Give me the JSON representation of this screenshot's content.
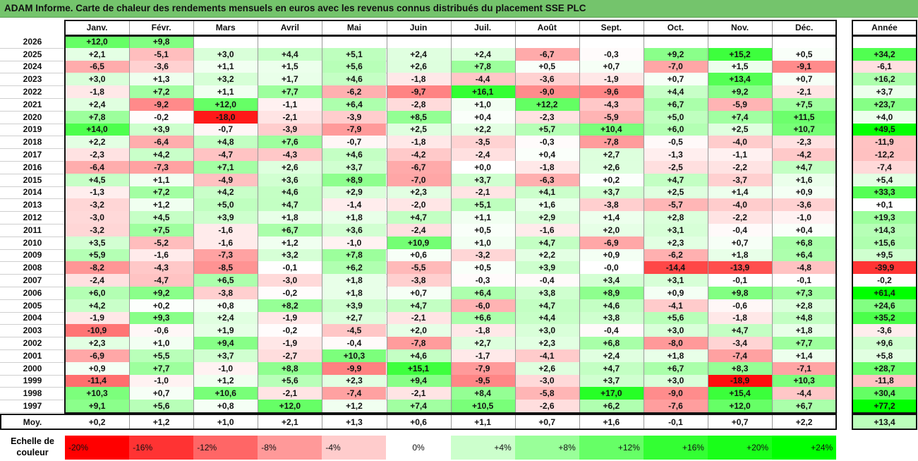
{
  "title": "ADAM Informe. Carte de chaleur des rendements mensuels en euros avec les revenus connus distribués du placement SSE PLC",
  "chart_data": {
    "type": "heatmap",
    "months": [
      "Janv.",
      "Févr.",
      "Mars",
      "Avril",
      "Mai",
      "Juin",
      "Juil.",
      "Août",
      "Sept.",
      "Oct.",
      "Nov.",
      "Déc."
    ],
    "year_header": "Année",
    "rows": [
      {
        "year": "2026",
        "values": [
          "+12,0",
          "+9,8",
          "",
          "",
          "",
          "",
          "",
          "",
          "",
          "",
          "",
          ""
        ],
        "annual": ""
      },
      {
        "year": "2025",
        "values": [
          "+2,1",
          "-5,1",
          "+3,0",
          "+4,4",
          "+5,1",
          "+2,4",
          "+2,4",
          "-6,7",
          "-0,3",
          "+9,2",
          "+15,2",
          "+0,5"
        ],
        "annual": "+34,2"
      },
      {
        "year": "2024",
        "values": [
          "-6,5",
          "-3,6",
          "+1,1",
          "+1,5",
          "+5,6",
          "+2,6",
          "+7,8",
          "+0,5",
          "+0,7",
          "-7,0",
          "+1,5",
          "-9,1"
        ],
        "annual": "-6,1"
      },
      {
        "year": "2023",
        "values": [
          "+3,0",
          "+1,3",
          "+3,2",
          "+1,7",
          "+4,6",
          "-1,8",
          "-4,4",
          "-3,6",
          "-1,9",
          "+0,7",
          "+13,4",
          "+0,7"
        ],
        "annual": "+16,2"
      },
      {
        "year": "2022",
        "values": [
          "-1,8",
          "+7,2",
          "+1,1",
          "+7,7",
          "-6,2",
          "-9,7",
          "+16,1",
          "-9,0",
          "-9,6",
          "+4,4",
          "+9,2",
          "-2,1"
        ],
        "annual": "+3,7"
      },
      {
        "year": "2021",
        "values": [
          "+2,4",
          "-9,2",
          "+12,0",
          "-1,1",
          "+6,4",
          "-2,8",
          "+1,0",
          "+12,2",
          "-4,3",
          "+6,7",
          "-5,9",
          "+7,5"
        ],
        "annual": "+23,7"
      },
      {
        "year": "2020",
        "values": [
          "+7,8",
          "-0,2",
          "-18,0",
          "-2,1",
          "-3,9",
          "+8,5",
          "+0,4",
          "-2,3",
          "-5,9",
          "+5,0",
          "+7,4",
          "+11,5"
        ],
        "annual": "+4,0"
      },
      {
        "year": "2019",
        "values": [
          "+14,0",
          "+3,9",
          "-0,7",
          "-3,9",
          "-7,9",
          "+2,5",
          "+2,2",
          "+5,7",
          "+10,4",
          "+6,0",
          "+2,5",
          "+10,7"
        ],
        "annual": "+49,5"
      },
      {
        "year": "2018",
        "values": [
          "+2,2",
          "-6,4",
          "+4,8",
          "+7,6",
          "-0,7",
          "-1,8",
          "-3,5",
          "-0,3",
          "-7,8",
          "-0,5",
          "-4,0",
          "-2,3"
        ],
        "annual": "-11,9"
      },
      {
        "year": "2017",
        "values": [
          "-2,3",
          "+4,2",
          "-4,7",
          "-4,3",
          "+4,6",
          "-4,2",
          "-2,4",
          "+0,4",
          "+2,7",
          "-1,3",
          "-1,1",
          "-4,2"
        ],
        "annual": "-12,2"
      },
      {
        "year": "2016",
        "values": [
          "-6,4",
          "-7,3",
          "+7,1",
          "+2,6",
          "+3,7",
          "-6,7",
          "+0,0",
          "-1,8",
          "+2,6",
          "-2,5",
          "-2,2",
          "+4,7"
        ],
        "annual": "-7,4"
      },
      {
        "year": "2015",
        "values": [
          "+4,5",
          "+1,1",
          "-4,9",
          "+3,6",
          "+8,9",
          "-7,0",
          "+3,7",
          "-6,3",
          "+0,2",
          "+4,7",
          "-3,7",
          "+1,6"
        ],
        "annual": "+5,4"
      },
      {
        "year": "2014",
        "values": [
          "-1,3",
          "+7,2",
          "+4,2",
          "+4,6",
          "+2,9",
          "+2,3",
          "-2,1",
          "+4,1",
          "+3,7",
          "+2,5",
          "+1,4",
          "+0,9"
        ],
        "annual": "+33,3"
      },
      {
        "year": "2013",
        "values": [
          "-3,2",
          "+1,2",
          "+5,0",
          "+4,7",
          "-1,4",
          "-2,0",
          "+5,1",
          "+1,6",
          "-3,8",
          "-5,7",
          "-4,0",
          "-3,6"
        ],
        "annual": "+0,1"
      },
      {
        "year": "2012",
        "values": [
          "-3,0",
          "+4,5",
          "+3,9",
          "+1,8",
          "+1,8",
          "+4,7",
          "+1,1",
          "+2,9",
          "+1,4",
          "+2,8",
          "-2,2",
          "-1,0"
        ],
        "annual": "+19,3"
      },
      {
        "year": "2011",
        "values": [
          "-3,2",
          "+7,5",
          "-1,6",
          "+6,7",
          "+3,6",
          "-2,4",
          "+0,5",
          "-1,6",
          "+2,0",
          "+3,1",
          "-0,4",
          "+0,4"
        ],
        "annual": "+14,3"
      },
      {
        "year": "2010",
        "values": [
          "+3,5",
          "-5,2",
          "-1,6",
          "+1,2",
          "-1,0",
          "+10,9",
          "+1,0",
          "+4,7",
          "-6,9",
          "+2,3",
          "+0,7",
          "+6,8"
        ],
        "annual": "+15,6"
      },
      {
        "year": "2009",
        "values": [
          "+5,9",
          "-1,6",
          "-7,3",
          "+3,2",
          "+7,8",
          "+0,6",
          "-3,2",
          "+2,2",
          "+0,9",
          "-6,2",
          "+1,8",
          "+6,4"
        ],
        "annual": "+9,5"
      },
      {
        "year": "2008",
        "values": [
          "-8,2",
          "-4,3",
          "-8,5",
          "-0,1",
          "+6,2",
          "-5,5",
          "+0,5",
          "+3,9",
          "-0,0",
          "-14,4",
          "-13,9",
          "-4,8"
        ],
        "annual": "-39,9"
      },
      {
        "year": "2007",
        "values": [
          "-2,4",
          "-4,7",
          "+6,5",
          "-3,0",
          "+1,8",
          "-3,8",
          "-0,3",
          "-0,4",
          "+3,4",
          "+3,1",
          "-0,1",
          "-0,1"
        ],
        "annual": "-0,2"
      },
      {
        "year": "2006",
        "values": [
          "+6,0",
          "+9,2",
          "-3,8",
          "-0,2",
          "+1,8",
          "+0,7",
          "+6,4",
          "+3,8",
          "+8,9",
          "+0,9",
          "+9,8",
          "+7,3"
        ],
        "annual": "+61,4"
      },
      {
        "year": "2005",
        "values": [
          "+4,2",
          "+0,2",
          "+0,8",
          "+8,2",
          "+3,9",
          "+4,7",
          "-6,0",
          "+4,7",
          "+4,6",
          "-4,1",
          "-0,6",
          "+2,8"
        ],
        "annual": "+24,6"
      },
      {
        "year": "2004",
        "values": [
          "-1,9",
          "+9,3",
          "+2,4",
          "-1,9",
          "+2,7",
          "-2,1",
          "+6,6",
          "+4,4",
          "+3,8",
          "+5,6",
          "-1,8",
          "+4,8"
        ],
        "annual": "+35,2"
      },
      {
        "year": "2003",
        "values": [
          "-10,9",
          "-0,6",
          "+1,9",
          "-0,2",
          "-4,5",
          "+2,0",
          "-1,8",
          "+3,0",
          "-0,4",
          "+3,0",
          "+4,7",
          "+1,8"
        ],
        "annual": "-3,6"
      },
      {
        "year": "2002",
        "values": [
          "+2,3",
          "+1,0",
          "+9,4",
          "-1,9",
          "-0,4",
          "-7,8",
          "+2,7",
          "+2,3",
          "+6,8",
          "-8,0",
          "-3,4",
          "+7,7"
        ],
        "annual": "+9,6"
      },
      {
        "year": "2001",
        "values": [
          "-6,9",
          "+5,5",
          "+3,7",
          "-2,7",
          "+10,3",
          "+4,6",
          "-1,7",
          "-4,1",
          "+2,4",
          "+1,8",
          "-7,4",
          "+1,4"
        ],
        "annual": "+5,8"
      },
      {
        "year": "2000",
        "values": [
          "+0,9",
          "+7,7",
          "-1,0",
          "+8,8",
          "-9,9",
          "+15,1",
          "-7,9",
          "+2,6",
          "+4,7",
          "+6,7",
          "+8,3",
          "-7,1"
        ],
        "annual": "+28,7"
      },
      {
        "year": "1999",
        "values": [
          "-11,4",
          "-1,0",
          "+1,2",
          "+5,6",
          "+2,3",
          "+9,4",
          "-9,5",
          "-3,0",
          "+3,7",
          "+3,0",
          "-18,9",
          "+10,3"
        ],
        "annual": "-11,8"
      },
      {
        "year": "1998",
        "values": [
          "+10,3",
          "+0,7",
          "+10,6",
          "-2,1",
          "-7,4",
          "-2,1",
          "+8,4",
          "-5,8",
          "+17,0",
          "-9,0",
          "+15,4",
          "-4,4"
        ],
        "annual": "+30,4"
      },
      {
        "year": "1997",
        "values": [
          "+9,1",
          "+5,6",
          "+0,8",
          "+12,0",
          "+1,2",
          "+7,4",
          "+10,5",
          "-2,6",
          "+6,2",
          "-7,6",
          "+12,0",
          "+6,7"
        ],
        "annual": "+77,2"
      }
    ],
    "average": {
      "label": "Moy.",
      "values": [
        "+0,2",
        "+1,2",
        "+1,0",
        "+2,1",
        "+1,3",
        "+0,6",
        "+1,1",
        "+0,7",
        "+1,6",
        "-0,1",
        "+0,7",
        "+2,2"
      ],
      "annual": "+13,4"
    },
    "color_scale": {
      "label_line1": "Echelle de",
      "label_line2": "couleur",
      "stops": [
        {
          "label": "-20%",
          "value": -20,
          "color": "#ff0000"
        },
        {
          "label": "-16%",
          "value": -16,
          "color": "#ff3333"
        },
        {
          "label": "-12%",
          "value": -12,
          "color": "#ff6666"
        },
        {
          "label": "-8%",
          "value": -8,
          "color": "#ff9999"
        },
        {
          "label": "-4%",
          "value": -4,
          "color": "#ffcccc"
        },
        {
          "label": "0%",
          "value": 0,
          "color": "#ffffff"
        },
        {
          "label": "+4%",
          "value": 4,
          "color": "#ccffcc"
        },
        {
          "label": "+8%",
          "value": 8,
          "color": "#99ff99"
        },
        {
          "label": "+12%",
          "value": 12,
          "color": "#66ff66"
        },
        {
          "label": "+16%",
          "value": 16,
          "color": "#33ff33"
        },
        {
          "label": "+20%",
          "value": 20,
          "color": "#19ff19"
        },
        {
          "label": "+24%",
          "value": 24,
          "color": "#00ff00"
        }
      ]
    }
  }
}
